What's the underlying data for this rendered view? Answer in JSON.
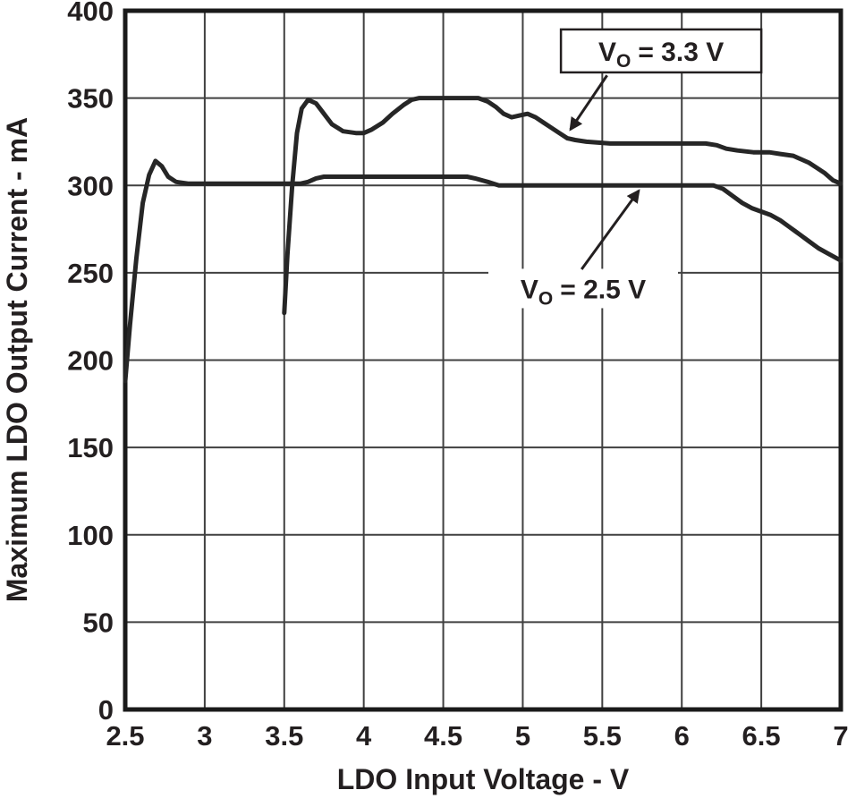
{
  "figure": {
    "background": "#ffffff"
  },
  "chart_data": {
    "type": "line",
    "title": "",
    "xlabel": "LDO Input Voltage - V",
    "ylabel": "Maximum LDO Output Current - mA",
    "xlim": [
      2.5,
      7
    ],
    "ylim": [
      0,
      400
    ],
    "grid": true,
    "legend_position": "none",
    "xticks": [
      2.5,
      3,
      3.5,
      4,
      4.5,
      5,
      5.5,
      6,
      6.5,
      7
    ],
    "xtick_labels": [
      "2.5",
      "3",
      "3.5",
      "4",
      "4.5",
      "5",
      "5.5",
      "6",
      "6.5",
      "7"
    ],
    "yticks": [
      0,
      50,
      100,
      150,
      200,
      250,
      300,
      350,
      400
    ],
    "ytick_labels": [
      "0",
      "50",
      "100",
      "150",
      "200",
      "250",
      "300",
      "350",
      "400"
    ],
    "colors": {
      "line": "#262626",
      "grid": "#404040",
      "frame": "#1a1a1a",
      "text": "#231f20",
      "background": "#ffffff"
    },
    "series": [
      {
        "id": "vo-3v3",
        "name": "VO = 3.3 V",
        "points": [
          [
            3.5,
            227
          ],
          [
            3.52,
            260
          ],
          [
            3.55,
            300
          ],
          [
            3.58,
            330
          ],
          [
            3.61,
            344
          ],
          [
            3.65,
            349
          ],
          [
            3.7,
            347
          ],
          [
            3.75,
            341
          ],
          [
            3.8,
            335
          ],
          [
            3.87,
            331
          ],
          [
            3.95,
            330
          ],
          [
            4.0,
            330
          ],
          [
            4.05,
            332
          ],
          [
            4.12,
            336
          ],
          [
            4.18,
            341
          ],
          [
            4.25,
            346
          ],
          [
            4.3,
            349
          ],
          [
            4.35,
            350
          ],
          [
            4.45,
            350
          ],
          [
            4.55,
            350
          ],
          [
            4.65,
            350
          ],
          [
            4.72,
            350
          ],
          [
            4.78,
            348
          ],
          [
            4.83,
            345
          ],
          [
            4.88,
            341
          ],
          [
            4.93,
            339
          ],
          [
            4.98,
            340
          ],
          [
            5.03,
            341
          ],
          [
            5.08,
            339
          ],
          [
            5.13,
            336
          ],
          [
            5.18,
            333
          ],
          [
            5.23,
            330
          ],
          [
            5.28,
            327
          ],
          [
            5.33,
            326
          ],
          [
            5.4,
            325
          ],
          [
            5.55,
            324
          ],
          [
            5.75,
            324
          ],
          [
            5.95,
            324
          ],
          [
            6.15,
            324
          ],
          [
            6.22,
            323
          ],
          [
            6.28,
            321
          ],
          [
            6.35,
            320
          ],
          [
            6.45,
            319
          ],
          [
            6.55,
            319
          ],
          [
            6.62,
            318
          ],
          [
            6.7,
            317
          ],
          [
            6.75,
            315
          ],
          [
            6.8,
            313
          ],
          [
            6.85,
            310
          ],
          [
            6.9,
            307
          ],
          [
            6.95,
            303
          ],
          [
            7.0,
            301
          ]
        ]
      },
      {
        "id": "vo-2v5",
        "name": "VO = 2.5 V",
        "points": [
          [
            2.5,
            188
          ],
          [
            2.53,
            220
          ],
          [
            2.57,
            258
          ],
          [
            2.61,
            290
          ],
          [
            2.65,
            306
          ],
          [
            2.69,
            314
          ],
          [
            2.73,
            311
          ],
          [
            2.77,
            305
          ],
          [
            2.82,
            302
          ],
          [
            2.9,
            301
          ],
          [
            3.1,
            301
          ],
          [
            3.3,
            301
          ],
          [
            3.5,
            301
          ],
          [
            3.6,
            301
          ],
          [
            3.65,
            302
          ],
          [
            3.7,
            304
          ],
          [
            3.75,
            305
          ],
          [
            3.9,
            305
          ],
          [
            4.1,
            305
          ],
          [
            4.3,
            305
          ],
          [
            4.5,
            305
          ],
          [
            4.65,
            305
          ],
          [
            4.7,
            304
          ],
          [
            4.78,
            302
          ],
          [
            4.85,
            300
          ],
          [
            5.0,
            300
          ],
          [
            5.2,
            300
          ],
          [
            5.4,
            300
          ],
          [
            5.6,
            300
          ],
          [
            5.8,
            300
          ],
          [
            6.0,
            300
          ],
          [
            6.2,
            300
          ],
          [
            6.26,
            298
          ],
          [
            6.32,
            294
          ],
          [
            6.38,
            290
          ],
          [
            6.44,
            287
          ],
          [
            6.5,
            285
          ],
          [
            6.56,
            283
          ],
          [
            6.62,
            280
          ],
          [
            6.68,
            276
          ],
          [
            6.74,
            272
          ],
          [
            6.8,
            268
          ],
          [
            6.86,
            264
          ],
          [
            6.92,
            261
          ],
          [
            6.96,
            259
          ],
          [
            7.0,
            257
          ]
        ]
      }
    ],
    "annotations": [
      {
        "id": "vo-3v3-label",
        "label": "VO = 3.3 V",
        "parts": {
          "pre": "V",
          "sub": "O",
          "post": "= 3.3 V"
        },
        "boxed": true,
        "label_x": 5.87,
        "label_y": 377,
        "arrow": {
          "from_x": 5.53,
          "from_y": 363,
          "to_x": 5.3,
          "to_y": 332
        }
      },
      {
        "id": "vo-2v5-label",
        "label": "VO = 2.5 V",
        "parts": {
          "pre": "V",
          "sub": "O",
          "post": "= 2.5 V"
        },
        "boxed": false,
        "label_x": 5.38,
        "label_y": 241,
        "arrow": {
          "from_x": 5.37,
          "from_y": 252,
          "to_x": 5.73,
          "to_y": 297
        }
      }
    ]
  }
}
